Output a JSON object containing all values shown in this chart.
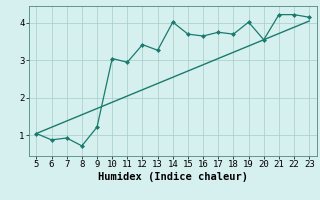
{
  "x": [
    5,
    6,
    7,
    8,
    9,
    10,
    11,
    12,
    13,
    14,
    15,
    16,
    17,
    18,
    19,
    20,
    21,
    22,
    23
  ],
  "y": [
    1.05,
    0.88,
    0.93,
    0.72,
    1.22,
    3.05,
    2.95,
    3.42,
    3.27,
    4.02,
    3.7,
    3.65,
    3.75,
    3.7,
    4.02,
    3.55,
    4.22,
    4.22,
    4.15
  ],
  "trend_x": [
    5,
    23
  ],
  "trend_y": [
    1.05,
    4.05
  ],
  "line_color": "#1a7a6e",
  "bg_color": "#d6f0ef",
  "grid_color": "#a8cdc9",
  "xlabel": "Humidex (Indice chaleur)",
  "xlim": [
    4.5,
    23.5
  ],
  "ylim": [
    0.45,
    4.45
  ],
  "xticks": [
    5,
    6,
    7,
    8,
    9,
    10,
    11,
    12,
    13,
    14,
    15,
    16,
    17,
    18,
    19,
    20,
    21,
    22,
    23
  ],
  "yticks": [
    1,
    2,
    3,
    4
  ],
  "xlabel_fontsize": 7.5,
  "tick_fontsize": 6.5
}
